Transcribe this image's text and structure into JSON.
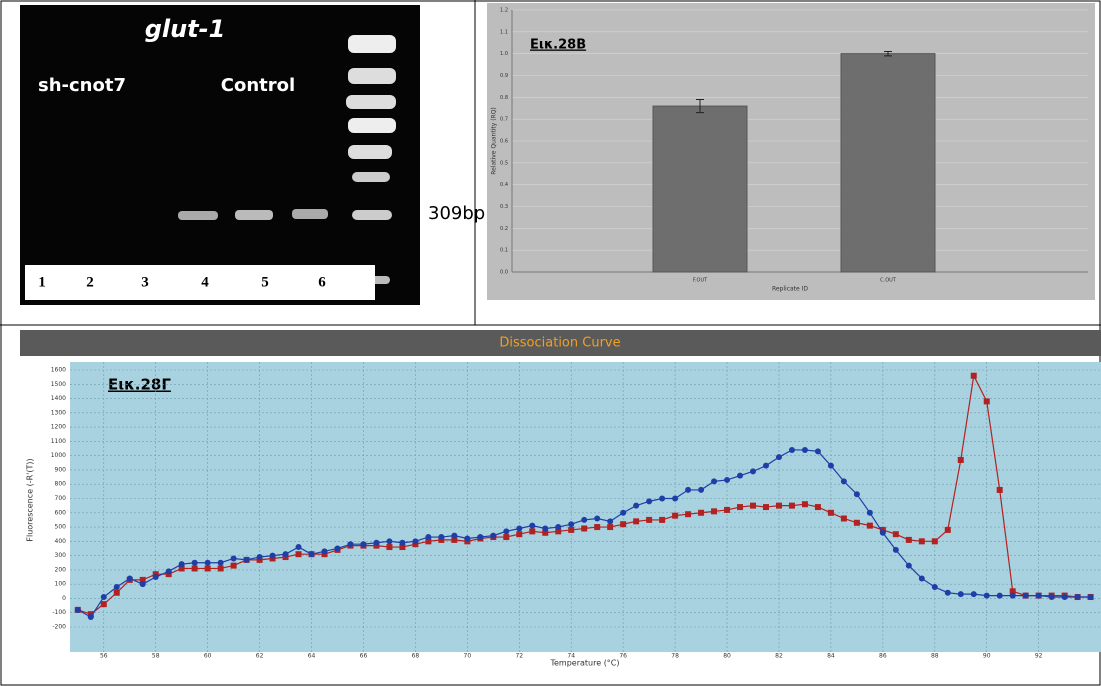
{
  "gel": {
    "title": "glut-1",
    "groups": [
      "sh-cnot7",
      "Control"
    ],
    "lanes": [
      "1",
      "2",
      "3",
      "4",
      "5",
      "6"
    ],
    "marker_label": "309bp"
  },
  "chart_data": [
    {
      "type": "bar",
      "annotation": "Εικ.28B",
      "x_label": "Replicate ID",
      "y_label": "Relative Quantity (RQ)",
      "categories": [
        "F.OUT",
        "C.OUT"
      ],
      "values": [
        0.76,
        1.0
      ],
      "errors": [
        0.03,
        0.01
      ],
      "color": "#6e6e6e",
      "ylim": [
        0,
        1.2
      ],
      "yticks": [
        {
          "value": 0,
          "label": "0.0"
        },
        0.1,
        0.2,
        0.3,
        0.4,
        0.5,
        0.6,
        0.7,
        0.8,
        0.9,
        {
          "value": 1,
          "label": "1.0"
        },
        1.1,
        1.2
      ],
      "grid": true
    },
    {
      "type": "line",
      "title": "Dissociation Curve",
      "annotation": "Εικ.28Γ",
      "x_label": "Temperature (°C)",
      "y_label": "Fluorescence (-R'(T))",
      "x": [
        55,
        55.5,
        56,
        56.5,
        57,
        57.5,
        58,
        58.5,
        59,
        59.5,
        60,
        60.5,
        61,
        61.5,
        62,
        62.5,
        63,
        63.5,
        64,
        64.5,
        65,
        65.5,
        66,
        66.5,
        67,
        67.5,
        68,
        68.5,
        69,
        69.5,
        70,
        70.5,
        71,
        71.5,
        72,
        72.5,
        73,
        73.5,
        74,
        74.5,
        75,
        75.5,
        76,
        76.5,
        77,
        77.5,
        78,
        78.5,
        79,
        79.5,
        80,
        80.5,
        81,
        81.5,
        82,
        82.5,
        83,
        83.5,
        84,
        84.5,
        85,
        85.5,
        86,
        86.5,
        87,
        87.5,
        88,
        88.5,
        89,
        89.5,
        90,
        90.5,
        91,
        91.5,
        92,
        92.5,
        93,
        93.5,
        94
      ],
      "series": [
        {
          "color": "#b22222",
          "marker": "square",
          "values": [
            -80,
            -110,
            -40,
            40,
            130,
            130,
            170,
            170,
            210,
            210,
            210,
            210,
            230,
            270,
            270,
            280,
            290,
            310,
            310,
            310,
            340,
            370,
            370,
            370,
            360,
            360,
            380,
            400,
            410,
            410,
            400,
            420,
            430,
            430,
            450,
            470,
            460,
            470,
            480,
            490,
            500,
            500,
            520,
            540,
            550,
            550,
            580,
            590,
            600,
            610,
            620,
            640,
            650,
            640,
            650,
            650,
            660,
            640,
            600,
            560,
            530,
            510,
            480,
            450,
            410,
            400,
            400,
            480,
            970,
            1560,
            1380,
            760,
            50,
            20,
            20,
            20,
            20,
            10,
            10
          ]
        },
        {
          "color": "#1f3fa8",
          "marker": "circle",
          "values": [
            -80,
            -130,
            10,
            80,
            140,
            100,
            150,
            190,
            240,
            250,
            250,
            250,
            280,
            270,
            290,
            300,
            310,
            360,
            310,
            330,
            350,
            380,
            380,
            390,
            400,
            390,
            400,
            430,
            430,
            440,
            420,
            430,
            440,
            470,
            490,
            510,
            490,
            500,
            520,
            550,
            560,
            540,
            600,
            650,
            680,
            700,
            700,
            760,
            760,
            820,
            830,
            860,
            890,
            930,
            990,
            1040,
            1040,
            1030,
            930,
            820,
            730,
            600,
            460,
            340,
            230,
            140,
            80,
            40,
            30,
            30,
            20,
            20,
            20,
            20,
            20,
            10,
            10,
            10,
            10
          ]
        }
      ],
      "xlim": [
        54.7,
        94.4
      ],
      "xticks": [
        56,
        58,
        60,
        62,
        64,
        66,
        68,
        70,
        72,
        74,
        76,
        78,
        80,
        82,
        84,
        86,
        88,
        90,
        92
      ],
      "ylim": [
        -200,
        1600
      ],
      "yticks": [
        -200,
        -100,
        0,
        100,
        200,
        300,
        400,
        500,
        600,
        700,
        800,
        900,
        1000,
        1100,
        1200,
        1300,
        1400,
        1500,
        1600
      ],
      "grid": true
    }
  ]
}
